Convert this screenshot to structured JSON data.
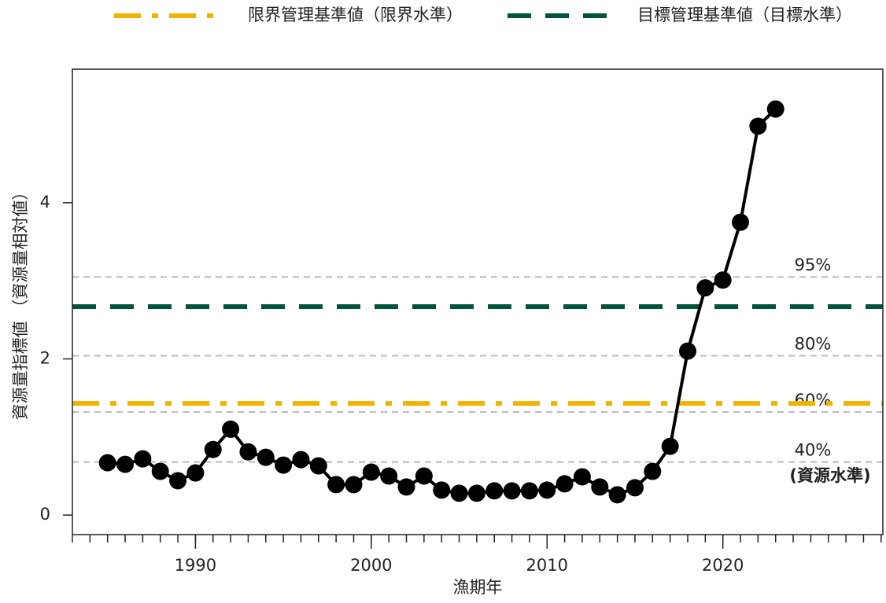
{
  "chart_data": {
    "type": "line",
    "x_label": "漁期年",
    "y_label": "資源量指標値 （資源量相対値）",
    "xlim": [
      1983,
      2029.1
    ],
    "ylim": [
      -0.25,
      5.71
    ],
    "xticks": [
      1990,
      2000,
      2010,
      2020
    ],
    "xminorticks": [
      1983,
      1984,
      1985,
      1986,
      1987,
      1988,
      1989,
      1990,
      1991,
      1992,
      1993,
      1994,
      1995,
      1996,
      1997,
      1998,
      1999,
      2000,
      2001,
      2002,
      2003,
      2004,
      2005,
      2006,
      2007,
      2008,
      2009,
      2010,
      2011,
      2012,
      2013,
      2014,
      2015,
      2016,
      2017,
      2018,
      2019,
      2020,
      2021,
      2022,
      2023,
      2024,
      2025,
      2026,
      2027,
      2028,
      2029
    ],
    "yticks": [
      0,
      2,
      4
    ],
    "series": [
      {
        "color": "#000000",
        "x": [
          1985,
          1986,
          1987,
          1988,
          1989,
          1990,
          1991,
          1992,
          1993,
          1994,
          1995,
          1996,
          1997,
          1998,
          1999,
          2000,
          2001,
          2002,
          2003,
          2004,
          2005,
          2006,
          2007,
          2008,
          2009,
          2010,
          2011,
          2012,
          2013,
          2014,
          2015,
          2016,
          2017,
          2018,
          2019,
          2020,
          2021,
          2022,
          2023
        ],
        "values": [
          0.67,
          0.65,
          0.72,
          0.56,
          0.44,
          0.54,
          0.84,
          1.1,
          0.81,
          0.74,
          0.64,
          0.71,
          0.63,
          0.39,
          0.39,
          0.55,
          0.5,
          0.36,
          0.5,
          0.32,
          0.28,
          0.28,
          0.31,
          0.31,
          0.31,
          0.32,
          0.4,
          0.49,
          0.36,
          0.26,
          0.35,
          0.56,
          0.88,
          2.1,
          2.91,
          3.01,
          3.75,
          4.98,
          5.2
        ]
      }
    ],
    "reference_lines": [
      {
        "name": "限界管理基準値（限界水準）",
        "value": 1.43,
        "color": "#f0b400",
        "style": "dashdot"
      },
      {
        "name": "目標管理基準値（目標水準）",
        "value": 2.67,
        "color": "#00543c",
        "style": "dashed"
      }
    ],
    "level_lines": [
      {
        "name": "95%",
        "value": 3.05
      },
      {
        "name": "80%",
        "value": 2.04
      },
      {
        "name": "60%",
        "value": 1.32
      },
      {
        "name": "40%",
        "value": 0.68
      }
    ],
    "level_note": "(資源水準)"
  }
}
